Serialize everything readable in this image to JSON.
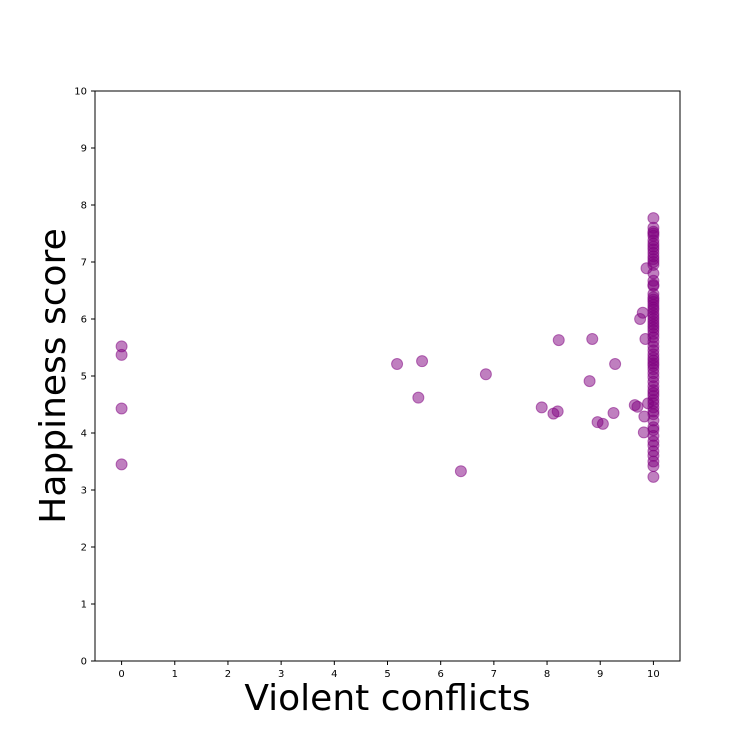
{
  "chart_data": {
    "type": "scatter",
    "xlabel": "Violent conflicts",
    "ylabel": "Happiness score",
    "xlim": [
      -0.5,
      10.5
    ],
    "ylim": [
      0,
      10
    ],
    "xticks": [
      "0",
      "1",
      "2",
      "3",
      "4",
      "5",
      "6",
      "7",
      "8",
      "9",
      "10"
    ],
    "yticks": [
      "0",
      "1",
      "2",
      "3",
      "4",
      "5",
      "6",
      "7",
      "8",
      "9",
      "10"
    ],
    "grid": false,
    "marker_color": "#800080",
    "marker_alpha": 0.5,
    "points": [
      [
        0,
        5.52
      ],
      [
        0,
        5.37
      ],
      [
        0,
        4.43
      ],
      [
        0,
        3.45
      ],
      [
        5.18,
        5.21
      ],
      [
        5.58,
        4.62
      ],
      [
        5.65,
        5.26
      ],
      [
        6.38,
        3.33
      ],
      [
        6.85,
        5.03
      ],
      [
        7.9,
        4.45
      ],
      [
        8.12,
        4.34
      ],
      [
        8.2,
        4.38
      ],
      [
        8.22,
        5.63
      ],
      [
        8.8,
        4.91
      ],
      [
        8.85,
        5.65
      ],
      [
        8.95,
        4.19
      ],
      [
        9.05,
        4.16
      ],
      [
        9.25,
        4.35
      ],
      [
        9.28,
        5.21
      ],
      [
        9.65,
        4.49
      ],
      [
        9.7,
        4.46
      ],
      [
        9.75,
        6.0
      ],
      [
        9.8,
        6.11
      ],
      [
        9.82,
        4.01
      ],
      [
        9.83,
        4.29
      ],
      [
        9.85,
        5.65
      ],
      [
        9.87,
        6.89
      ],
      [
        9.9,
        4.52
      ],
      [
        10,
        7.77
      ],
      [
        10,
        7.6
      ],
      [
        10,
        7.53
      ],
      [
        10,
        7.5
      ],
      [
        10,
        7.46
      ],
      [
        10,
        7.38
      ],
      [
        10,
        7.32
      ],
      [
        10,
        7.27
      ],
      [
        10,
        7.22
      ],
      [
        10,
        7.16
      ],
      [
        10,
        7.1
      ],
      [
        10,
        7.05
      ],
      [
        10,
        7.0
      ],
      [
        10,
        6.95
      ],
      [
        10,
        6.8
      ],
      [
        10,
        6.67
      ],
      [
        10,
        6.6
      ],
      [
        10,
        6.58
      ],
      [
        10,
        6.44
      ],
      [
        10,
        6.38
      ],
      [
        10,
        6.34
      ],
      [
        10,
        6.3
      ],
      [
        10,
        6.25
      ],
      [
        10,
        6.2
      ],
      [
        10,
        6.16
      ],
      [
        10,
        6.1
      ],
      [
        10,
        6.05
      ],
      [
        10,
        6.0
      ],
      [
        10,
        5.95
      ],
      [
        10,
        5.9
      ],
      [
        10,
        5.85
      ],
      [
        10,
        5.8
      ],
      [
        10,
        5.74
      ],
      [
        10,
        5.68
      ],
      [
        10,
        5.6
      ],
      [
        10,
        5.52
      ],
      [
        10,
        5.45
      ],
      [
        10,
        5.38
      ],
      [
        10,
        5.32
      ],
      [
        10,
        5.27
      ],
      [
        10,
        5.22
      ],
      [
        10,
        5.18
      ],
      [
        10,
        5.12
      ],
      [
        10,
        5.05
      ],
      [
        10,
        4.98
      ],
      [
        10,
        4.9
      ],
      [
        10,
        4.82
      ],
      [
        10,
        4.75
      ],
      [
        10,
        4.7
      ],
      [
        10,
        4.65
      ],
      [
        10,
        4.58
      ],
      [
        10,
        4.52
      ],
      [
        10,
        4.45
      ],
      [
        10,
        4.38
      ],
      [
        10,
        4.33
      ],
      [
        10,
        4.22
      ],
      [
        10,
        4.1
      ],
      [
        10,
        4.05
      ],
      [
        10,
        3.95
      ],
      [
        10,
        3.85
      ],
      [
        10,
        3.78
      ],
      [
        10,
        3.68
      ],
      [
        10,
        3.6
      ],
      [
        10,
        3.5
      ],
      [
        10,
        3.42
      ],
      [
        10,
        3.23
      ]
    ]
  }
}
